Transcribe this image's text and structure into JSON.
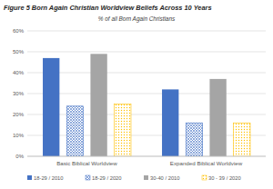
{
  "chart_data": {
    "type": "bar",
    "title": "Figure 5 Born Again Christian Worldview Beliefs Across 10 Years",
    "subtitle": "% of all Born Again Christians",
    "categories": [
      "Basic Biblical Worldview",
      "Expanded Biblical Worldview"
    ],
    "series": [
      {
        "name": "18-29 / 2010",
        "color": "#4472c4",
        "values": [
          47,
          32
        ]
      },
      {
        "name": "18-29 / 2020",
        "color": "#4472c4",
        "marker": "crosshatch",
        "values": [
          24,
          16
        ]
      },
      {
        "name": "30-40 / 2010",
        "color": "#a5a5a5",
        "values": [
          49,
          37
        ]
      },
      {
        "name": "30 - 39 / 2020",
        "color": "#ffc000",
        "marker": "dots",
        "values": [
          25,
          16
        ]
      }
    ],
    "ylim": [
      0,
      60
    ],
    "yticks": [
      {
        "value": 0,
        "label": "0%"
      },
      {
        "value": 10,
        "label": "10%"
      },
      {
        "value": 20,
        "label": "20%"
      },
      {
        "value": 30,
        "label": "30%"
      },
      {
        "value": 40,
        "label": "40%"
      },
      {
        "value": 50,
        "label": "50%"
      },
      {
        "value": 60,
        "label": "60%"
      }
    ],
    "grid": true,
    "legend": "bottom"
  }
}
